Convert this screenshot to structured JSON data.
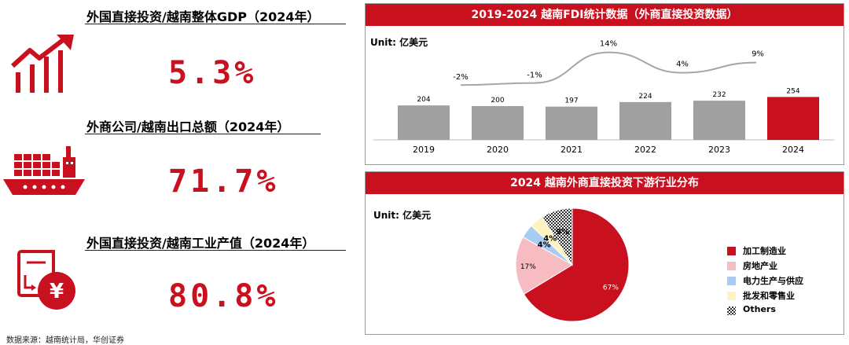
{
  "kpis": [
    {
      "title": "外国直接投资/越南整体GDP（2024年）",
      "value": "5.3%",
      "icon": "bar-growth-arrow-icon"
    },
    {
      "title": "外商公司/越南出口总额（2024年）",
      "value": "71.7%",
      "icon": "cargo-ship-icon"
    },
    {
      "title": "外国直接投资/越南工业产值（2024年）",
      "value": "80.8%",
      "icon": "yen-money-icon"
    }
  ],
  "footnote": "数据来源：越南统计局，华创证券",
  "colors": {
    "accent": "#c8101f",
    "gray_bar": "#a0a0a0",
    "line": "#a6a6a6",
    "real_estate": "#f7bcc2",
    "power": "#a9cdf2",
    "wholesale": "#fff3c0"
  },
  "chart1": {
    "header": "2019-2024 越南FDI统计数据（外商直接投资数据）",
    "unit": "Unit: 亿美元"
  },
  "chart2": {
    "header": "2024 越南外商直接投资下游行业分布",
    "unit": "Unit: 亿美元"
  },
  "chart_data": [
    {
      "type": "bar",
      "title": "2019-2024 越南FDI统计数据（外商直接投资数据）",
      "categories": [
        "2019",
        "2020",
        "2021",
        "2022",
        "2023",
        "2024"
      ],
      "series": [
        {
          "values": [
            204,
            200,
            197,
            224,
            232,
            254
          ],
          "highlight": "2024"
        }
      ],
      "growth_labels": [
        "-2%",
        "-1%",
        "14%",
        "4%",
        "9%"
      ],
      "growth_values": [
        -2,
        -1,
        14,
        4,
        9
      ],
      "ylim": [
        0,
        260
      ],
      "grid": false
    },
    {
      "type": "pie",
      "title": "2024 越南外商直接投资下游行业分布",
      "labels": [
        "加工制造业",
        "房地产业",
        "电力生产与供应",
        "批发和零售业",
        "Others"
      ],
      "values": [
        67,
        17,
        4,
        4,
        9
      ],
      "value_labels": [
        "67%",
        "17%",
        "4%",
        "4%",
        "9%"
      ],
      "colors": [
        "#c8101f",
        "#f7bcc2",
        "#a9cdf2",
        "#fff3c0",
        "pattern-checker"
      ],
      "legend": "right"
    }
  ]
}
